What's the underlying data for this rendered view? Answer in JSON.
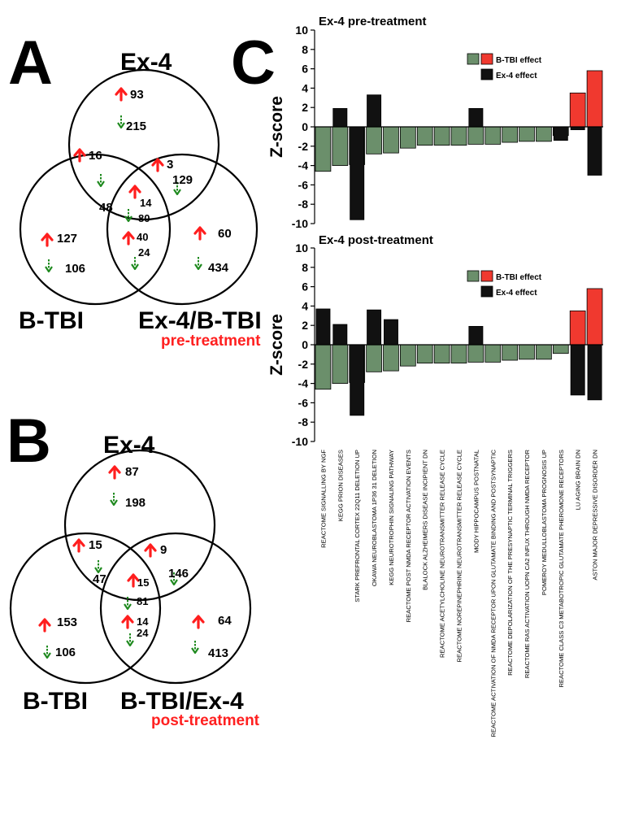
{
  "panels": {
    "a": "A",
    "b": "B",
    "c": "C"
  },
  "venn_a": {
    "set_top": "Ex-4",
    "set_left": "B-TBI",
    "set_right": "Ex-4/B-TBI",
    "condition": "pre-treatment",
    "counts": {
      "top_up": "93",
      "top_down": "215",
      "tl_up": "16",
      "tl_down": "48",
      "tr_up": "3",
      "tr_down": "129",
      "center_up": "14",
      "center_down": "80",
      "lr_up": "40",
      "lr_down": "24",
      "left_up": "127",
      "left_down": "106",
      "right_up": "60",
      "right_down": "434"
    }
  },
  "venn_b": {
    "set_top": "Ex-4",
    "set_left": "B-TBI",
    "set_right": "B-TBI/Ex-4",
    "condition": "post-treatment",
    "counts": {
      "top_up": "87",
      "top_down": "198",
      "tl_up": "15",
      "tl_down": "47",
      "tr_up": "9",
      "tr_down": "146",
      "center_up": "15",
      "center_down": "81",
      "lr_up": "14",
      "lr_down": "24",
      "left_up": "153",
      "left_down": "106",
      "right_up": "64",
      "right_down": "413"
    }
  },
  "colors": {
    "btbi": "#6b8f6b",
    "ex4": "#111111",
    "up_ex": "#f0392f",
    "up_arrow": "#ff1e1e",
    "down_arrow": "#1f8a1f"
  },
  "chart_data": [
    {
      "type": "bar",
      "title": "Ex-4 pre-treatment",
      "ylabel": "Z-score",
      "ylim": [
        -10,
        10
      ],
      "yticks": [
        -10,
        -8,
        -6,
        -4,
        -2,
        0,
        2,
        4,
        6,
        8,
        10
      ],
      "legend": {
        "position": "top-right",
        "btbi": "B-TBI effect",
        "ex4": "Ex-4 effect"
      },
      "categories": [
        "REACTOME SIGNALLING BY NGF",
        "KEGG PRION DISEASES",
        "STARK PREFRONTAL CORTEX 22Q11 DELETION UP",
        "OKAWA NEUROBLASTOMA 1P36 31 DELETION",
        "KEGG NEUROTROPHIN SIGNALING PATHWAY",
        "REACTOME POST NMDA RECEPTOR ACTIVATION EVENTS",
        "BLALOCK ALZHEIMERS DISEASE INCIPIENT DN",
        "REACTOME ACETYLCHOLINE NEUROTRANSMITTER RELEASE CYCLE",
        "REACTOME NOREPINEPHRINE NEUROTRANSMITTER RELEASE CYCLE",
        "MODY HIPPOCAMPUS POSTNATAL",
        "REACTOME ACTIVATION OF NMDA RECEPTOR UPON GLUTAMATE BINDING AND POSTSYNAPTIC",
        "REACTOME DEPOLARIZATION OF THE PRESYNAPTIC TERMINAL TRIGGERS",
        "REACTOME RAS ACTIVATION UOPN CA2 INFUX THROUGH NMDA RECEPTOR",
        "POMEROY MEDULLOBLASTOMA PROGNOSIS UP",
        "REACTOME CLASS C3 METABOTROPIC GLUTAMATE PHEROMONE RECEPTORS",
        "LU AGING BRAIN DN",
        "ASTON MAJOR DEPRESSIVE DISORDER DN"
      ],
      "series": [
        {
          "name": "B-TBI effect",
          "values": [
            -4.6,
            -4.0,
            -3.9,
            -2.8,
            -2.7,
            -2.2,
            -1.9,
            -1.9,
            -1.9,
            -1.8,
            -1.8,
            -1.6,
            -1.5,
            -1.5,
            -0.9,
            3.5,
            5.8
          ]
        },
        {
          "name": "Ex-4 effect",
          "values": [
            0,
            1.9,
            -9.6,
            3.3,
            0,
            0,
            0,
            0,
            0,
            1.9,
            0,
            0,
            0,
            0,
            -1.4,
            -0.3,
            -5.0
          ]
        }
      ]
    },
    {
      "type": "bar",
      "title": "Ex-4 post-treatment",
      "ylabel": "Z-score",
      "ylim": [
        -10,
        10
      ],
      "yticks": [
        -10,
        -8,
        -6,
        -4,
        -2,
        0,
        2,
        4,
        6,
        8,
        10
      ],
      "legend": {
        "position": "top-right",
        "btbi": "B-TBI effect",
        "ex4": "Ex-4 effect"
      },
      "categories": [
        "REACTOME SIGNALLING BY NGF",
        "KEGG PRION DISEASES",
        "STARK PREFRONTAL CORTEX 22Q11 DELETION UP",
        "OKAWA NEUROBLASTOMA 1P36 31 DELETION",
        "KEGG NEUROTROPHIN SIGNALING PATHWAY",
        "REACTOME POST NMDA RECEPTOR ACTIVATION EVENTS",
        "BLALOCK ALZHEIMERS DISEASE INCIPIENT DN",
        "REACTOME ACETYLCHOLINE NEUROTRANSMITTER RELEASE CYCLE",
        "REACTOME NOREPINEPHRINE NEUROTRANSMITTER RELEASE CYCLE",
        "MODY HIPPOCAMPUS POSTNATAL",
        "REACTOME ACTIVATION OF NMDA RECEPTOR UPON GLUTAMATE BINDING AND POSTSYNAPTIC",
        "REACTOME DEPOLARIZATION OF THE PRESYNAPTIC TERMINAL TRIGGERS",
        "REACTOME RAS ACTIVATION UOPN CA2 INFUX THROUGH NMDA RECEPTOR",
        "POMEROY MEDULLOBLASTOMA PROGNOSIS UP",
        "REACTOME CLASS C3 METABOTROPIC GLUTAMATE PHEROMONE RECEPTORS",
        "LU AGING BRAIN DN",
        "ASTON MAJOR DEPRESSIVE DISORDER DN"
      ],
      "series": [
        {
          "name": "B-TBI effect",
          "values": [
            -4.6,
            -4.0,
            -3.9,
            -2.8,
            -2.7,
            -2.2,
            -1.9,
            -1.9,
            -1.9,
            -1.8,
            -1.8,
            -1.6,
            -1.5,
            -1.5,
            -0.9,
            3.5,
            5.8
          ]
        },
        {
          "name": "Ex-4 effect",
          "values": [
            3.7,
            2.1,
            -7.3,
            3.6,
            2.6,
            0,
            0,
            0,
            0,
            1.9,
            0,
            0,
            0,
            0,
            0,
            -5.2,
            -5.7
          ]
        }
      ]
    }
  ]
}
